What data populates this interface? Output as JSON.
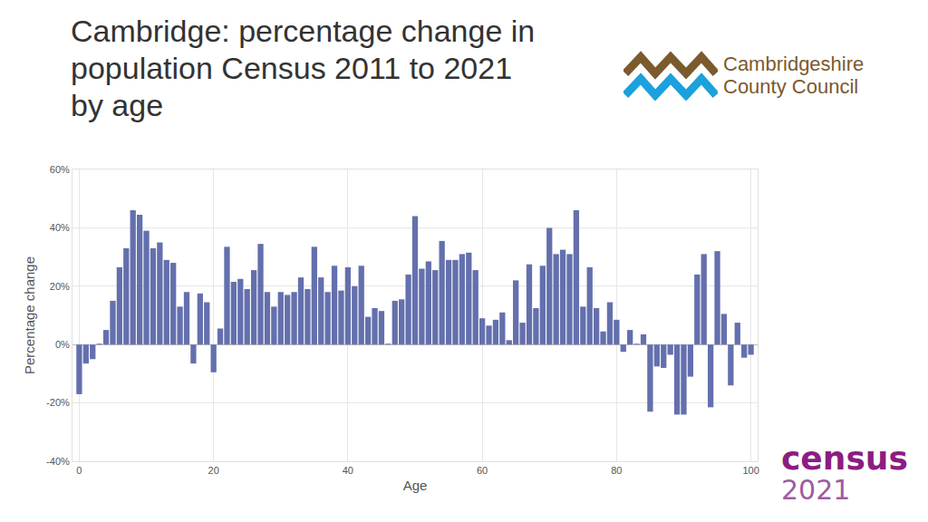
{
  "chart_data": {
    "type": "bar",
    "title": "Cambridge: percentage change in population Census 2011 to 2021 by age",
    "x_label": "Age",
    "y_label": "Percentage change",
    "x": [
      0,
      1,
      2,
      3,
      4,
      5,
      6,
      7,
      8,
      9,
      10,
      11,
      12,
      13,
      14,
      15,
      16,
      17,
      18,
      19,
      20,
      21,
      22,
      23,
      24,
      25,
      26,
      27,
      28,
      29,
      30,
      31,
      32,
      33,
      34,
      35,
      36,
      37,
      38,
      39,
      40,
      41,
      42,
      43,
      44,
      45,
      46,
      47,
      48,
      49,
      50,
      51,
      52,
      53,
      54,
      55,
      56,
      57,
      58,
      59,
      60,
      61,
      62,
      63,
      64,
      65,
      66,
      67,
      68,
      69,
      70,
      71,
      72,
      73,
      74,
      75,
      76,
      77,
      78,
      79,
      80,
      81,
      82,
      83,
      84,
      85,
      86,
      87,
      88,
      89,
      90,
      91,
      92,
      93,
      94,
      95,
      96,
      97,
      98,
      99,
      100
    ],
    "values": [
      -17,
      -6.5,
      -5,
      0.3,
      5,
      15,
      26.5,
      33,
      46,
      44.5,
      39,
      33,
      35,
      29,
      28,
      13,
      18,
      -6.5,
      17.5,
      14.5,
      -9.5,
      5.5,
      33.5,
      21.5,
      22.5,
      19,
      25.5,
      34.5,
      18,
      13,
      18,
      17,
      18,
      23,
      19,
      33.5,
      23,
      18,
      27,
      18.5,
      26.5,
      20,
      27,
      9.5,
      12.5,
      11.5,
      0.3,
      15,
      15.5,
      24,
      44,
      26,
      28.5,
      25.5,
      35.5,
      29,
      29,
      31,
      31.5,
      25.5,
      9,
      6.5,
      8.5,
      11,
      1.5,
      22,
      7.5,
      27.5,
      12.5,
      27,
      40,
      31,
      32.5,
      31,
      46,
      13,
      26.5,
      12.5,
      4.5,
      14.5,
      8.5,
      -2.5,
      5,
      0.3,
      3.5,
      -23,
      -7.5,
      -8,
      -3.5,
      -24,
      -24,
      -11,
      24,
      31,
      -21.5,
      32,
      10.5,
      -14,
      7.5,
      -4.5,
      -3.5
    ],
    "color": "#6470ad",
    "xlim": [
      -1,
      101
    ],
    "xticks": [
      0,
      20,
      40,
      60,
      80,
      100
    ],
    "ylim": [
      -40,
      60
    ],
    "yticks": [
      {
        "value": -40,
        "label": "-40%"
      },
      {
        "value": -20,
        "label": "-20%"
      },
      {
        "value": 0,
        "label": "0%"
      },
      {
        "value": 20,
        "label": "20%"
      },
      {
        "value": 40,
        "label": "40%"
      },
      {
        "value": 60,
        "label": "60%"
      }
    ],
    "grid": true
  },
  "logos": [
    "Cambridgeshire County Council",
    "census 2021"
  ]
}
